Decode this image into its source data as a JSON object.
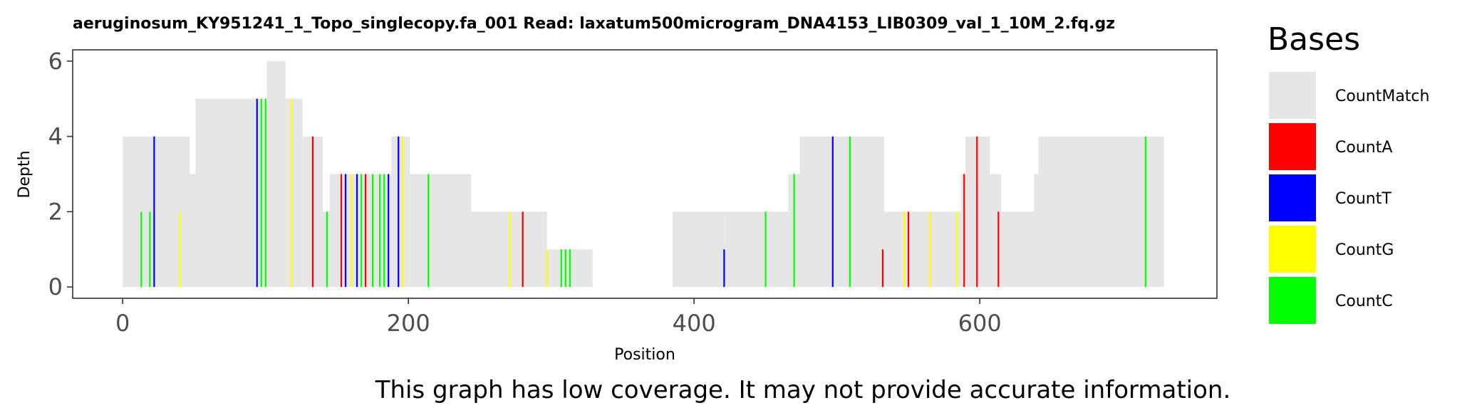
{
  "chart_data": {
    "type": "bar",
    "title": "aeruginosum_KY951241_1_Topo_singlecopy.fa_001   Read: laxatum500microgram_DNA4153_LIB0309_val_1_10M_2.fq.gz",
    "xlabel": "Position",
    "ylabel": "Depth",
    "xlim": [
      -35,
      766
    ],
    "ylim": [
      -0.3,
      6.3
    ],
    "xticks": [
      "0",
      "200",
      "400",
      "600"
    ],
    "xtick_values": [
      0,
      200,
      400,
      600
    ],
    "yticks": [
      "0",
      "2",
      "4",
      "6"
    ],
    "ytick_values": [
      0,
      2,
      4,
      6
    ],
    "grid": false,
    "legend_position": "right",
    "legend_title": "Bases",
    "legend": [
      {
        "name": "CountMatch",
        "color": "#e6e6e6"
      },
      {
        "name": "CountA",
        "color": "#ff0000"
      },
      {
        "name": "CountT",
        "color": "#0000ff"
      },
      {
        "name": "CountG",
        "color": "#ffff00"
      },
      {
        "name": "CountC",
        "color": "#00ff00"
      }
    ],
    "coverage": [
      {
        "x0": 0,
        "x1": 47,
        "depth": 4
      },
      {
        "x0": 47,
        "x1": 51,
        "depth": 3
      },
      {
        "x0": 51,
        "x1": 101,
        "depth": 5
      },
      {
        "x0": 101,
        "x1": 114,
        "depth": 6
      },
      {
        "x0": 114,
        "x1": 126,
        "depth": 5
      },
      {
        "x0": 126,
        "x1": 140,
        "depth": 4
      },
      {
        "x0": 140,
        "x1": 145,
        "depth": 2
      },
      {
        "x0": 145,
        "x1": 188,
        "depth": 3
      },
      {
        "x0": 188,
        "x1": 201,
        "depth": 4
      },
      {
        "x0": 201,
        "x1": 244,
        "depth": 3
      },
      {
        "x0": 244,
        "x1": 297,
        "depth": 2
      },
      {
        "x0": 297,
        "x1": 329,
        "depth": 1
      },
      {
        "x0": 385,
        "x1": 421,
        "depth": 2
      },
      {
        "x0": 421,
        "x1": 466,
        "depth": 2
      },
      {
        "x0": 466,
        "x1": 474,
        "depth": 3
      },
      {
        "x0": 474,
        "x1": 533,
        "depth": 4
      },
      {
        "x0": 533,
        "x1": 587,
        "depth": 2
      },
      {
        "x0": 587,
        "x1": 590,
        "depth": 3
      },
      {
        "x0": 590,
        "x1": 607,
        "depth": 4
      },
      {
        "x0": 607,
        "x1": 615,
        "depth": 3
      },
      {
        "x0": 615,
        "x1": 638,
        "depth": 2
      },
      {
        "x0": 638,
        "x1": 641,
        "depth": 3
      },
      {
        "x0": 641,
        "x1": 729,
        "depth": 4
      }
    ],
    "mismatches": [
      {
        "pos": 13,
        "base": "CountC",
        "count": 2
      },
      {
        "pos": 19,
        "base": "CountC",
        "count": 2
      },
      {
        "pos": 22,
        "base": "CountT",
        "count": 4
      },
      {
        "pos": 40,
        "base": "CountG",
        "count": 2
      },
      {
        "pos": 94,
        "base": "CountT",
        "count": 5
      },
      {
        "pos": 97,
        "base": "CountC",
        "count": 5
      },
      {
        "pos": 100,
        "base": "CountC",
        "count": 5
      },
      {
        "pos": 118,
        "base": "CountG",
        "count": 5
      },
      {
        "pos": 133,
        "base": "CountA",
        "count": 4
      },
      {
        "pos": 143,
        "base": "CountC",
        "count": 2
      },
      {
        "pos": 153,
        "base": "CountA",
        "count": 3
      },
      {
        "pos": 156,
        "base": "CountT",
        "count": 3
      },
      {
        "pos": 160,
        "base": "CountG",
        "count": 3
      },
      {
        "pos": 164,
        "base": "CountT",
        "count": 3
      },
      {
        "pos": 167,
        "base": "CountC",
        "count": 3
      },
      {
        "pos": 170,
        "base": "CountA",
        "count": 3
      },
      {
        "pos": 175,
        "base": "CountC",
        "count": 3
      },
      {
        "pos": 180,
        "base": "CountC",
        "count": 3
      },
      {
        "pos": 183,
        "base": "CountC",
        "count": 3
      },
      {
        "pos": 186,
        "base": "CountT",
        "count": 3
      },
      {
        "pos": 193,
        "base": "CountT",
        "count": 4
      },
      {
        "pos": 196,
        "base": "CountG",
        "count": 4
      },
      {
        "pos": 214,
        "base": "CountC",
        "count": 3
      },
      {
        "pos": 271,
        "base": "CountG",
        "count": 2
      },
      {
        "pos": 280,
        "base": "CountA",
        "count": 2
      },
      {
        "pos": 297,
        "base": "CountG",
        "count": 1
      },
      {
        "pos": 307,
        "base": "CountC",
        "count": 1
      },
      {
        "pos": 310,
        "base": "CountC",
        "count": 1
      },
      {
        "pos": 313,
        "base": "CountC",
        "count": 1
      },
      {
        "pos": 421,
        "base": "CountT",
        "count": 1
      },
      {
        "pos": 450,
        "base": "CountC",
        "count": 2
      },
      {
        "pos": 470,
        "base": "CountC",
        "count": 3
      },
      {
        "pos": 497,
        "base": "CountT",
        "count": 4
      },
      {
        "pos": 509,
        "base": "CountC",
        "count": 4
      },
      {
        "pos": 532,
        "base": "CountA",
        "count": 1
      },
      {
        "pos": 547,
        "base": "CountG",
        "count": 2
      },
      {
        "pos": 550,
        "base": "CountA",
        "count": 2
      },
      {
        "pos": 565,
        "base": "CountG",
        "count": 2
      },
      {
        "pos": 584,
        "base": "CountG",
        "count": 2
      },
      {
        "pos": 589,
        "base": "CountA",
        "count": 3
      },
      {
        "pos": 598,
        "base": "CountA",
        "count": 4
      },
      {
        "pos": 613,
        "base": "CountA",
        "count": 2
      },
      {
        "pos": 716,
        "base": "CountC",
        "count": 4
      }
    ]
  },
  "notice": "This graph has low coverage. It may not provide accurate information."
}
